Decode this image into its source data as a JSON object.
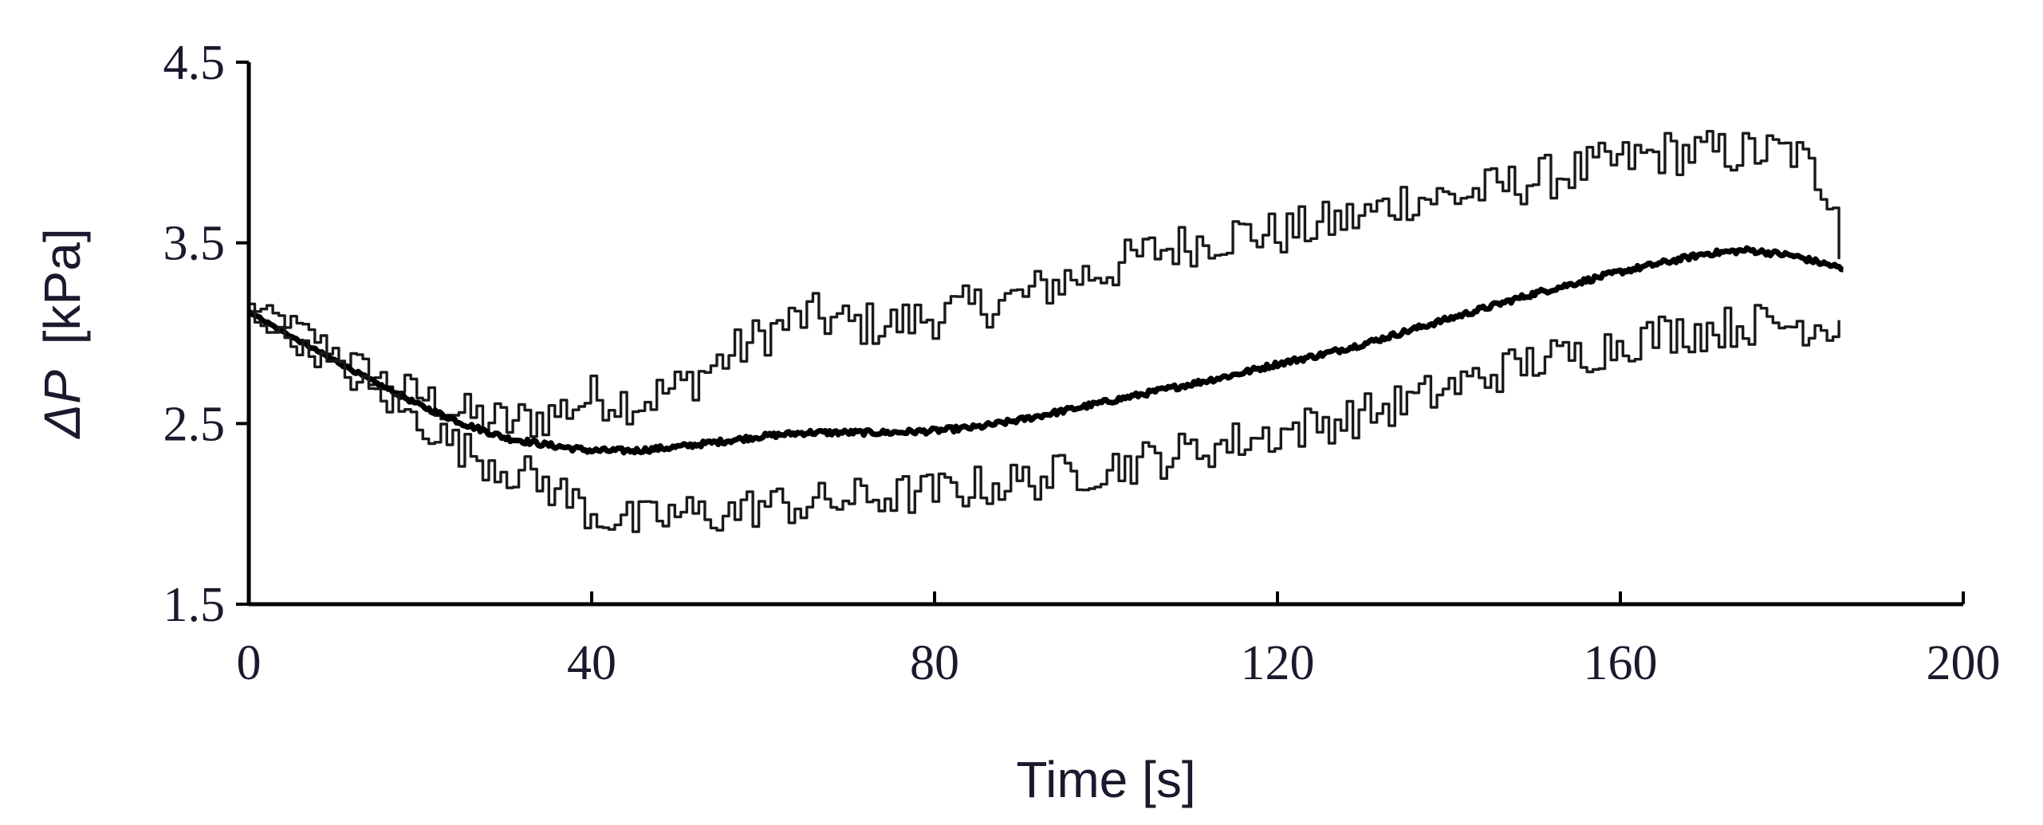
{
  "chart_data": {
    "type": "line",
    "title": "",
    "xlabel": "Time [s]",
    "ylabel_symbol": "ΔP",
    "ylabel_unit": "[kPa]",
    "xlim": [
      0,
      200
    ],
    "ylim": [
      1.5,
      4.5
    ],
    "xticks": [
      0,
      40,
      80,
      120,
      160,
      200
    ],
    "yticks": [
      1.5,
      2.5,
      3.5,
      4.5
    ],
    "xtick_labels": [
      "0",
      "40",
      "80",
      "120",
      "160",
      "200"
    ],
    "ytick_labels": [
      "1.5",
      "2.5",
      "3.5",
      "4.5"
    ],
    "grid": false,
    "legend": "none",
    "series": [
      {
        "role": "upper-envelope",
        "x": [
          0,
          5,
          10,
          15,
          20,
          25,
          30,
          35,
          40,
          45,
          50,
          55,
          60,
          65,
          70,
          75,
          80,
          85,
          90,
          95,
          100,
          105,
          110,
          115,
          120,
          125,
          130,
          135,
          140,
          145,
          150,
          155,
          160,
          165,
          170,
          175,
          180,
          185,
          186
        ],
        "y": [
          3.15,
          3.05,
          2.9,
          2.75,
          2.65,
          2.55,
          2.5,
          2.55,
          2.65,
          2.62,
          2.7,
          2.85,
          3.0,
          3.1,
          3.05,
          3.05,
          3.1,
          3.15,
          3.2,
          3.3,
          3.35,
          3.45,
          3.5,
          3.55,
          3.55,
          3.6,
          3.65,
          3.75,
          3.75,
          3.8,
          3.85,
          3.9,
          3.95,
          4.0,
          4.0,
          4.0,
          4.0,
          3.75,
          3.15
        ],
        "noise": 0.13,
        "stroke": "#1a1a1a"
      },
      {
        "role": "mean",
        "x": [
          0,
          5,
          10,
          15,
          20,
          25,
          30,
          35,
          40,
          45,
          50,
          55,
          60,
          65,
          70,
          75,
          80,
          85,
          90,
          95,
          100,
          105,
          110,
          115,
          120,
          125,
          130,
          135,
          140,
          145,
          150,
          155,
          160,
          165,
          170,
          175,
          180,
          185,
          186
        ],
        "y": [
          3.12,
          2.98,
          2.85,
          2.72,
          2.6,
          2.5,
          2.42,
          2.38,
          2.35,
          2.35,
          2.37,
          2.4,
          2.43,
          2.45,
          2.45,
          2.45,
          2.46,
          2.48,
          2.52,
          2.57,
          2.62,
          2.67,
          2.72,
          2.77,
          2.83,
          2.88,
          2.94,
          3.01,
          3.08,
          3.15,
          3.22,
          3.28,
          3.34,
          3.39,
          3.44,
          3.46,
          3.43,
          3.37,
          3.35
        ],
        "noise": 0.015,
        "stroke": "#000000"
      },
      {
        "role": "lower-envelope",
        "x": [
          0,
          5,
          10,
          15,
          20,
          25,
          30,
          35,
          40,
          45,
          50,
          55,
          60,
          65,
          70,
          75,
          80,
          85,
          90,
          95,
          100,
          105,
          110,
          115,
          120,
          125,
          130,
          135,
          140,
          145,
          150,
          155,
          160,
          165,
          170,
          175,
          180,
          185,
          186
        ],
        "y": [
          3.1,
          2.95,
          2.8,
          2.65,
          2.5,
          2.35,
          2.25,
          2.15,
          2.0,
          1.95,
          2.0,
          2.0,
          2.05,
          2.05,
          2.08,
          2.1,
          2.12,
          2.15,
          2.18,
          2.22,
          2.26,
          2.3,
          2.35,
          2.4,
          2.45,
          2.5,
          2.55,
          2.62,
          2.7,
          2.78,
          2.85,
          2.88,
          2.95,
          3.0,
          3.02,
          3.05,
          3.05,
          3.05,
          3.15
        ],
        "noise": 0.12,
        "stroke": "#1a1a1a"
      }
    ]
  }
}
